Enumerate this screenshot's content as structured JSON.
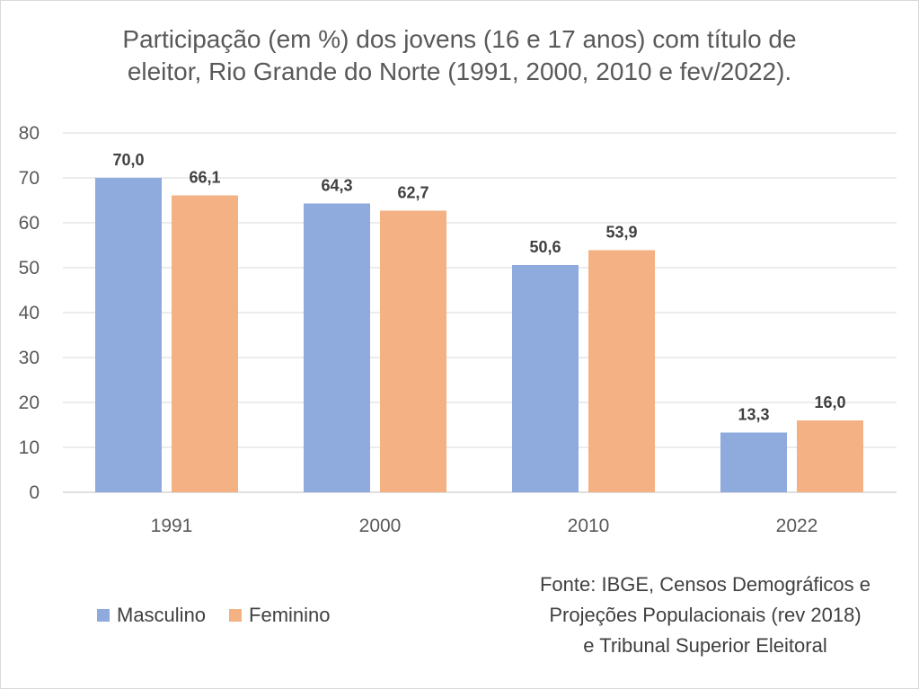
{
  "chart_data": {
    "type": "bar",
    "title_lines": [
      "Participação (em %) dos jovens (16 e 17 anos) com título de",
      "eleitor, Rio Grande do Norte (1991, 2000, 2010 e fev/2022)."
    ],
    "categories": [
      "1991",
      "2000",
      "2010",
      "2022"
    ],
    "series": [
      {
        "name": "Masculino",
        "color": "#8faadc",
        "values": [
          70.0,
          64.3,
          50.6,
          13.3
        ],
        "labels": [
          "70,0",
          "64,3",
          "50,6",
          "13,3"
        ]
      },
      {
        "name": "Feminino",
        "color": "#f4b183",
        "values": [
          66.1,
          62.7,
          53.9,
          16.0
        ],
        "labels": [
          "66,1",
          "62,7",
          "53,9",
          "16,0"
        ]
      }
    ],
    "ylim": [
      0,
      80
    ],
    "yticks": [
      0,
      10,
      20,
      30,
      40,
      50,
      60,
      70,
      80
    ],
    "grid": true,
    "legend": "bottom-left",
    "source_lines": [
      "Fonte: IBGE, Censos Demográficos e",
      "Projeções Populacionais (rev 2018)",
      "e Tribunal Superior Eleitoral"
    ]
  }
}
